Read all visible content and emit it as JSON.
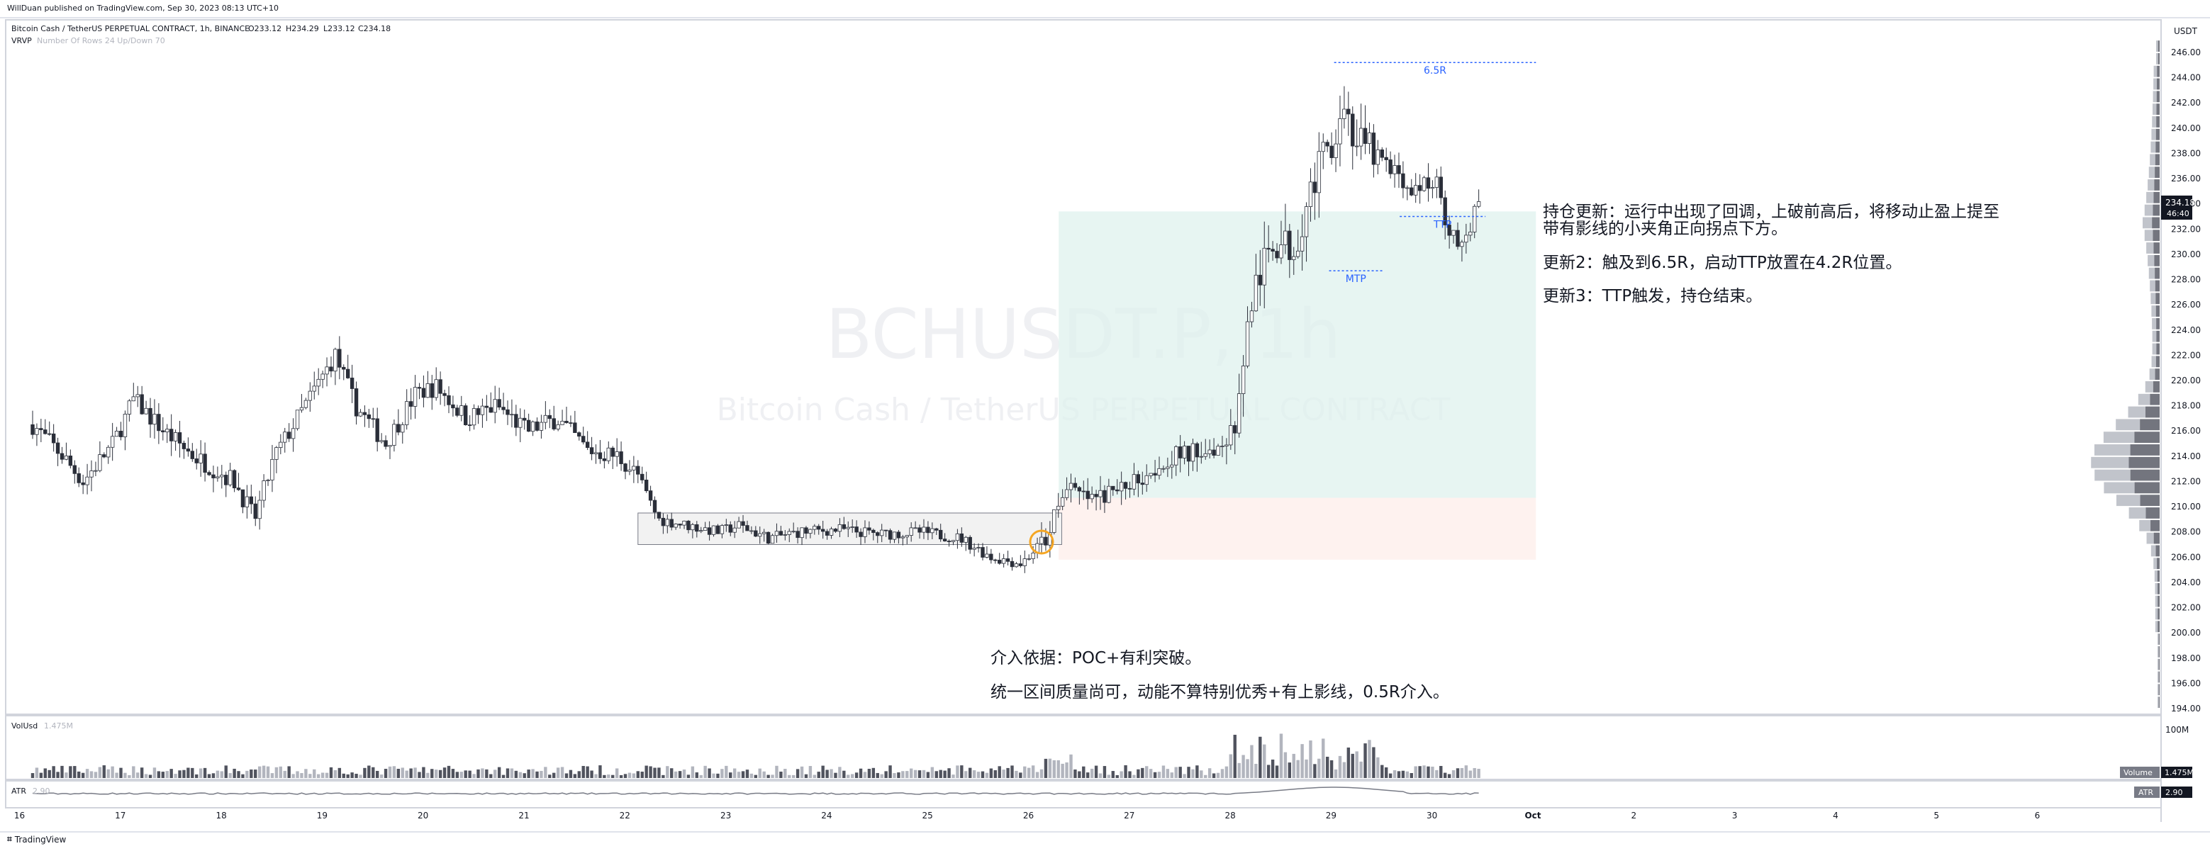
{
  "header": {
    "published_by": "WillDuan published on TradingView.com, Sep 30, 2023 08:13 UTC+10",
    "symbol_line": "Bitcoin Cash / TetherUS PERPETUAL CONTRACT, 1h, BINANCE",
    "ohlc": {
      "open": "O233.12",
      "high": "H234.29",
      "low": "L233.12",
      "close": "C234.18"
    },
    "indicator_name": "VRVP",
    "indicator_params": "Number Of Rows 24 Up/Down 70"
  },
  "watermark": {
    "ticker": "BCHUSDT.P, 1h",
    "description": "Bitcoin Cash / TetherUS PERPETUAL CONTRACT"
  },
  "price_axis": {
    "currency": "USDT",
    "ticks": [
      "246.00",
      "244.00",
      "242.00",
      "240.00",
      "238.00",
      "236.00",
      "234.00",
      "232.00",
      "230.00",
      "228.00",
      "226.00",
      "224.00",
      "222.00",
      "220.00",
      "218.00",
      "216.00",
      "214.00",
      "212.00",
      "210.00",
      "208.00",
      "206.00",
      "204.00",
      "202.00",
      "200.00",
      "198.00",
      "196.00",
      "194.00"
    ],
    "last_price": "234.18",
    "countdown": "46:40"
  },
  "volume_pane": {
    "label": "VolUsd",
    "value": "1.475M",
    "axis_tick": "100M",
    "badge_name": "Volume",
    "badge_value": "1.475M"
  },
  "atr_pane": {
    "label": "ATR",
    "value": "2.90",
    "badge_name": "ATR",
    "badge_value": "2.90"
  },
  "time_axis": {
    "labels": [
      "16",
      "17",
      "18",
      "19",
      "20",
      "21",
      "22",
      "23",
      "24",
      "25",
      "26",
      "27",
      "28",
      "29",
      "30",
      "Oct",
      "2",
      "3",
      "4",
      "5",
      "6"
    ]
  },
  "drawings": {
    "levels": [
      {
        "label": "6.5R",
        "price": 245.2
      },
      {
        "label": "TTP",
        "price": 233.0
      },
      {
        "label": "MTP",
        "price": 228.7
      }
    ],
    "notes_right": [
      "持仓更新：运行中出现了回调，上破前高后，将移动止盈上提至",
      "带有影线的小夹角正向拐点下方。",
      "更新2：触及到6.5R，启动TTP放置在4.2R位置。",
      "更新3：TTP触发，持仓结束。"
    ],
    "notes_bottom": [
      "介入依据：POC+有利突破。",
      "统一区间质量尚可，动能不算特别优秀+有上影线，0.5R介入。"
    ],
    "colors": {
      "profit_zone": "#dff2ee",
      "loss_zone": "#fdeeea",
      "level_line": "#2962ff",
      "range_box": "#f2f2f2",
      "entry_marker": "#f5a623"
    }
  },
  "footer": {
    "brand": "TradingView"
  },
  "chart_data": {
    "type": "candlestick",
    "symbol": "BCHUSDT.P",
    "timeframe": "1h",
    "ylim": [
      193,
      247
    ],
    "colors": {
      "up": "#ffffff",
      "down": "#2a2e39",
      "wick": "#2a2e39",
      "volume_up": "#b2b5be",
      "volume_down": "#50535e"
    },
    "price_path": {
      "description_points_x_is_day_index_y_is_price": [
        [
          0.0,
          216.5
        ],
        [
          0.3,
          214.0
        ],
        [
          0.5,
          212.0
        ],
        [
          0.8,
          215.0
        ],
        [
          1.0,
          218.5
        ],
        [
          1.3,
          216.0
        ],
        [
          1.6,
          214.0
        ],
        [
          2.0,
          212.0
        ],
        [
          2.2,
          209.0
        ],
        [
          2.4,
          214.0
        ],
        [
          2.7,
          218.0
        ],
        [
          3.0,
          222.0
        ],
        [
          3.2,
          218.0
        ],
        [
          3.5,
          215.0
        ],
        [
          3.8,
          219.0
        ],
        [
          4.0,
          219.5
        ],
        [
          4.3,
          217.0
        ],
        [
          4.6,
          218.0
        ],
        [
          4.9,
          216.0
        ],
        [
          5.2,
          217.0
        ],
        [
          5.5,
          214.5
        ],
        [
          5.8,
          214.0
        ],
        [
          6.0,
          212.5
        ],
        [
          6.2,
          209.0
        ],
        [
          6.5,
          208.5
        ],
        [
          6.8,
          208.0
        ],
        [
          7.0,
          208.5
        ],
        [
          7.3,
          207.5
        ],
        [
          7.6,
          208.0
        ],
        [
          8.0,
          208.2
        ],
        [
          8.4,
          207.8
        ],
        [
          8.8,
          208.0
        ],
        [
          9.2,
          207.5
        ],
        [
          9.5,
          206.0
        ],
        [
          9.8,
          205.5
        ],
        [
          10.05,
          207.5
        ],
        [
          10.2,
          211.5
        ],
        [
          10.5,
          210.5
        ],
        [
          10.8,
          211.5
        ],
        [
          11.0,
          212.5
        ],
        [
          11.3,
          214.0
        ],
        [
          11.6,
          214.5
        ],
        [
          11.8,
          215.0
        ],
        [
          11.95,
          217.5
        ],
        [
          12.0,
          222.0
        ],
        [
          12.1,
          227.0
        ],
        [
          12.3,
          231.0
        ],
        [
          12.5,
          230.5
        ],
        [
          12.7,
          236.0
        ],
        [
          12.85,
          238.5
        ],
        [
          13.0,
          242.0
        ],
        [
          13.1,
          239.0
        ],
        [
          13.3,
          238.0
        ],
        [
          13.5,
          236.5
        ],
        [
          13.7,
          235.0
        ],
        [
          13.9,
          236.0
        ],
        [
          14.0,
          233.0
        ],
        [
          14.15,
          230.0
        ],
        [
          14.25,
          232.5
        ],
        [
          14.35,
          234.18
        ]
      ]
    },
    "volume_profile_poc": 213.5,
    "annotations": {
      "range_box": {
        "top": 209.5,
        "bottom": 207.0,
        "start_day": 6.0,
        "end_day": 10.2
      },
      "entry_price": 207.2,
      "stop_price": 205.8,
      "profit_zone_top": 233.4,
      "loss_zone_bottom": 205.8
    }
  }
}
